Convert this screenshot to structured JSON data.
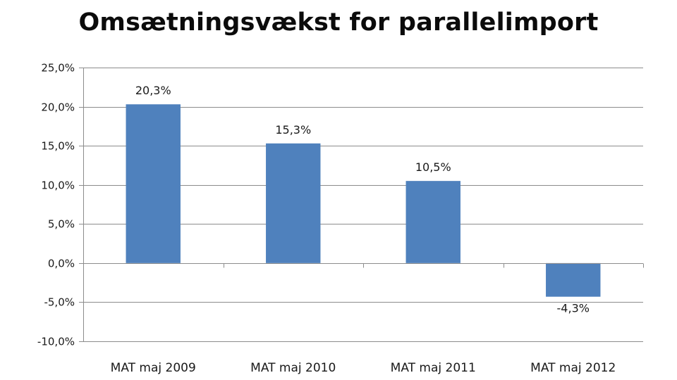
{
  "chart_data": {
    "type": "bar",
    "title": "Omsætningsvækst for parallelimport",
    "xlabel": "",
    "ylabel": "",
    "categories": [
      "MAT maj 2009",
      "MAT maj 2010",
      "MAT maj 2011",
      "MAT maj 2012"
    ],
    "values": [
      20.3,
      15.3,
      10.5,
      -4.3
    ],
    "data_labels": [
      "20,3%",
      "15,3%",
      "10,5%",
      "-4,3%"
    ],
    "ylim": [
      -10,
      25
    ],
    "yticks": [
      25,
      20,
      15,
      10,
      5,
      0,
      -5,
      -10
    ],
    "ytick_labels": [
      "25,0%",
      "20,0%",
      "15,0%",
      "10,0%",
      "5,0%",
      "0,0%",
      "-5,0%",
      "-10,0%"
    ],
    "grid": true,
    "legend": "none",
    "colors": {
      "bar": "#4f81bd",
      "grid": "#8c8c8c",
      "axis": "#8c8c8c"
    }
  }
}
